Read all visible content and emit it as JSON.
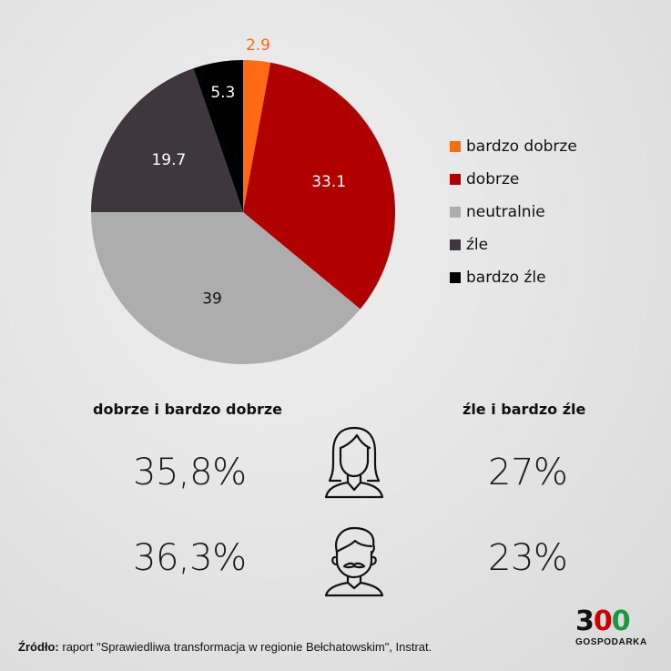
{
  "chart_data": {
    "type": "pie",
    "slices": [
      {
        "name": "bardzo dobrze",
        "value": 2.9,
        "label": "2.9",
        "color": "#ff6a13"
      },
      {
        "name": "dobrze",
        "value": 33.1,
        "label": "33.1",
        "color": "#b00000"
      },
      {
        "name": "neutralnie",
        "value": 39,
        "label": "39",
        "color": "#adadad"
      },
      {
        "name": "źle",
        "value": 19.7,
        "label": "19.7",
        "color": "#3e383e"
      },
      {
        "name": "bardzo źle",
        "value": 5.3,
        "label": "5.3",
        "color": "#000000"
      }
    ],
    "legend_position": "right"
  },
  "summary": {
    "left_title": "dobrze i bardzo dobrze",
    "right_title": "źle i bardzo źle",
    "rows": [
      {
        "icon": "woman-icon",
        "left_value": "35,8%",
        "right_value": "27%"
      },
      {
        "icon": "man-icon",
        "left_value": "36,3%",
        "right_value": "23%"
      }
    ]
  },
  "source": {
    "label": "Źródło:",
    "text": " raport \"Sprawiedliwa transformacja w regionie Bełchatowskim\", Instrat."
  },
  "logo": {
    "number": "300",
    "word": "GOSPODARKA",
    "colors": {
      "three": "#111111",
      "first_zero": "#cc0000",
      "second_zero": "#1a9a3c"
    }
  }
}
